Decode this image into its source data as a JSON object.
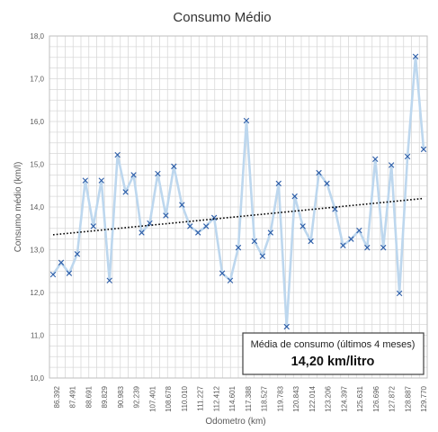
{
  "chart_data": {
    "type": "line",
    "title": "Consumo Médio",
    "xlabel": "Odometro (km)",
    "ylabel": "Consumo médio (km/l)",
    "ylim": [
      10,
      18
    ],
    "yticks": [
      "10,0",
      "11,0",
      "12,0",
      "13,0",
      "14,0",
      "15,0",
      "16,0",
      "17,0",
      "18,0"
    ],
    "x_tick_labels": [
      "86.392",
      "87.491",
      "88.691",
      "89.829",
      "90.983",
      "92.239",
      "107.401",
      "108.678",
      "110.010",
      "111.227",
      "112.412",
      "114.601",
      "117.388",
      "118.527",
      "119.783",
      "120.843",
      "122.014",
      "123.206",
      "124.397",
      "125.631",
      "126.696",
      "127.872",
      "128.887",
      "129.770"
    ],
    "grid": true,
    "series": [
      {
        "marker": "x",
        "color": "#bdd7ee",
        "marker_color": "#2e5ea8",
        "values": [
          12.42,
          12.7,
          12.45,
          12.9,
          14.62,
          13.55,
          14.62,
          12.28,
          15.22,
          14.35,
          14.75,
          13.4,
          13.62,
          14.78,
          13.8,
          14.95,
          14.05,
          13.55,
          13.4,
          13.55,
          13.75,
          12.45,
          12.28,
          13.05,
          16.02,
          13.2,
          12.85,
          13.4,
          14.55,
          11.2,
          14.25,
          13.55,
          13.2,
          14.8,
          14.55,
          13.95,
          13.1,
          13.25,
          13.45,
          13.05,
          15.12,
          13.05,
          14.98,
          11.98,
          15.18,
          17.52,
          15.35
        ]
      }
    ],
    "trendline": {
      "type": "linear",
      "style": "dotted",
      "color": "#000000",
      "start": 13.35,
      "end": 14.2
    }
  },
  "annotation": {
    "title": "Média de consumo (últimos 4 meses)",
    "value": "14,20 km/litro"
  }
}
